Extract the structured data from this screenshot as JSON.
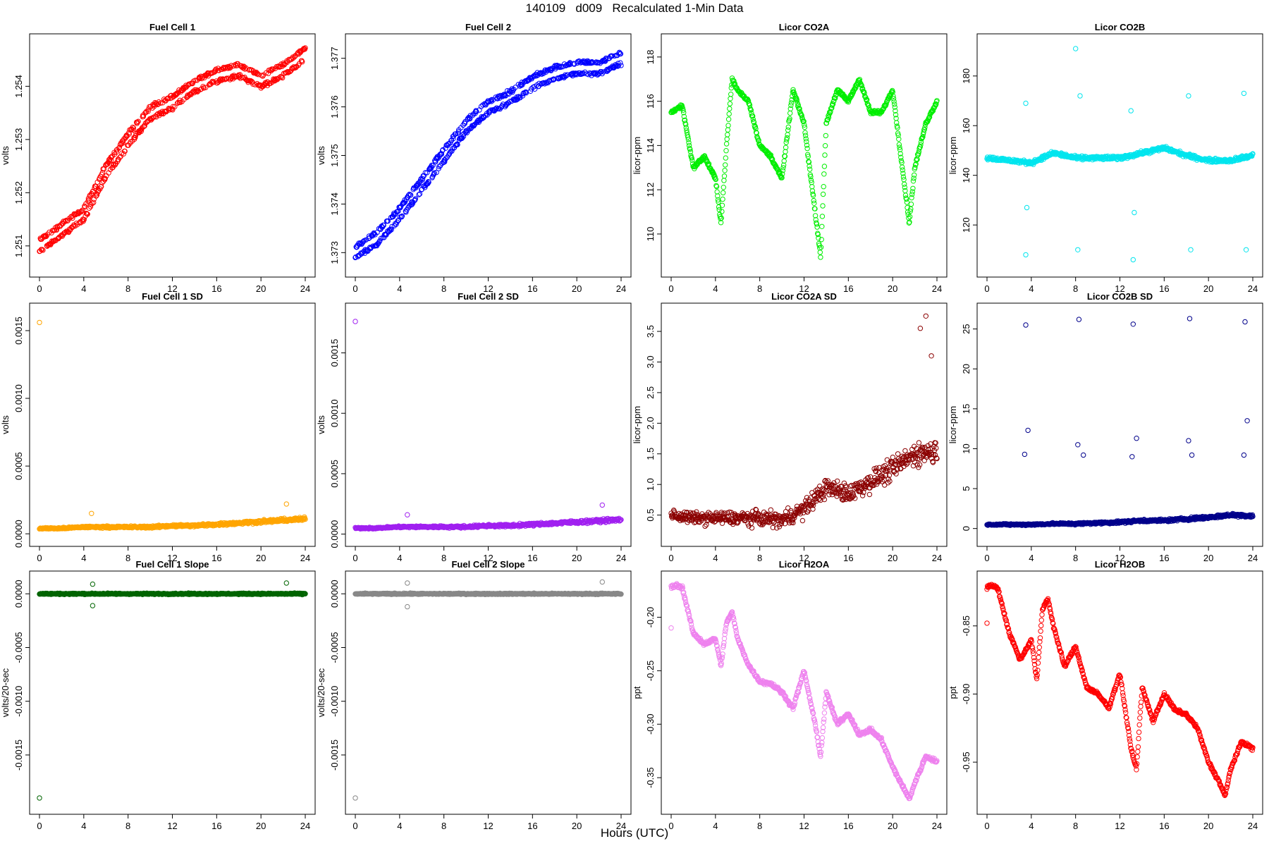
{
  "figure": {
    "title": "140109   d009   Recalculated 1-Min Data",
    "xlabel": "Hours (UTC)"
  },
  "chart_data": [
    {
      "id": "fc1",
      "type": "scatter",
      "title": "Fuel Cell 1",
      "xlabel": "",
      "ylabel": "volts",
      "color": "#ff0000",
      "xlim": [
        0,
        24
      ],
      "ylim": [
        1.2506,
        1.2548
      ],
      "xticks": [
        "0",
        "4",
        "8",
        "12",
        "16",
        "20",
        "24"
      ],
      "yticks": [
        "1.251",
        "1.252",
        "1.253",
        "1.254"
      ],
      "x": [
        0,
        2,
        4,
        6,
        8,
        10,
        12,
        14,
        16,
        18,
        20,
        22,
        24
      ],
      "series": [
        {
          "values": [
            1.251,
            1.2513,
            1.2516,
            1.2524,
            1.253,
            1.2535,
            1.2537,
            1.254,
            1.2542,
            1.2543,
            1.2541,
            1.2543,
            1.2546
          ]
        }
      ]
    },
    {
      "id": "fc2",
      "type": "scatter",
      "title": "Fuel Cell 2",
      "xlabel": "",
      "ylabel": "volts",
      "color": "#0000ff",
      "xlim": [
        0,
        24
      ],
      "ylim": [
        1.3727,
        1.3773
      ],
      "xticks": [
        "0",
        "4",
        "8",
        "12",
        "16",
        "20",
        "24"
      ],
      "yticks": [
        "1.373",
        "1.374",
        "1.375",
        "1.376",
        "1.377"
      ],
      "x": [
        0,
        2,
        4,
        6,
        8,
        10,
        12,
        14,
        16,
        18,
        20,
        22,
        24
      ],
      "series": [
        {
          "values": [
            1.373,
            1.3733,
            1.3738,
            1.3744,
            1.375,
            1.3756,
            1.376,
            1.3762,
            1.3765,
            1.3767,
            1.3768,
            1.3768,
            1.377
          ]
        }
      ]
    },
    {
      "id": "co2a",
      "type": "scatter",
      "title": "Licor CO2A",
      "xlabel": "",
      "ylabel": "licor-ppm",
      "color": "#00ee00",
      "xlim": [
        0,
        24
      ],
      "ylim": [
        108.5,
        118.6
      ],
      "xticks": [
        "0",
        "4",
        "8",
        "12",
        "16",
        "20",
        "24"
      ],
      "yticks": [
        "110",
        "112",
        "114",
        "116",
        "118"
      ],
      "x": [
        0,
        1,
        2,
        3,
        4,
        4.5,
        5,
        5.5,
        6,
        7,
        8,
        9,
        10,
        11,
        12,
        13,
        13.5,
        14,
        15,
        16,
        17,
        18,
        19,
        20,
        21,
        21.5,
        22,
        23,
        24
      ],
      "series": [
        {
          "values": [
            115.5,
            115.8,
            113,
            113.5,
            112.5,
            110.5,
            114,
            117,
            116.5,
            116,
            114,
            113.5,
            112.5,
            116.5,
            115,
            111,
            109,
            115,
            116.5,
            116,
            117,
            115.5,
            115.5,
            116.5,
            112.5,
            110.5,
            113,
            115,
            116
          ]
        }
      ]
    },
    {
      "id": "co2b",
      "type": "scatter",
      "title": "Licor CO2B",
      "xlabel": "",
      "ylabel": "licor-ppm",
      "color": "#00e5ee",
      "xlim": [
        0,
        24
      ],
      "ylim": [
        103,
        193
      ],
      "xticks": [
        "0",
        "4",
        "8",
        "12",
        "16",
        "20",
        "24"
      ],
      "yticks": [
        "120",
        "140",
        "160",
        "180"
      ],
      "x": [
        0,
        2,
        4,
        6,
        8,
        10,
        12,
        14,
        16,
        18,
        20,
        22,
        24
      ],
      "series": [
        {
          "values": [
            147,
            146,
            145,
            149,
            147,
            147,
            147,
            149,
            151,
            148,
            146,
            146,
            148
          ]
        }
      ],
      "outliers_x": [
        3.5,
        3.5,
        3.6,
        8,
        8.2,
        8.4,
        13,
        13.2,
        13.3,
        18.2,
        18.4,
        23.2,
        23.4
      ],
      "outliers_y": [
        169,
        108,
        127,
        191,
        110,
        172,
        166,
        106,
        125,
        172,
        110,
        173,
        110
      ]
    },
    {
      "id": "fc1sd",
      "type": "scatter",
      "title": "Fuel Cell 1 SD",
      "xlabel": "",
      "ylabel": "volts",
      "color": "#ffa500",
      "xlim": [
        0,
        24
      ],
      "ylim": [
        -2e-05,
        0.00163
      ],
      "xticks": [
        "0",
        "4",
        "8",
        "12",
        "16",
        "20",
        "24"
      ],
      "yticks": [
        "0.0000",
        "0.0005",
        "0.0010",
        "0.0015"
      ],
      "x": [
        0,
        2,
        4,
        6,
        8,
        10,
        12,
        14,
        16,
        18,
        20,
        22,
        24
      ],
      "series": [
        {
          "values": [
            4e-05,
            4e-05,
            5e-05,
            5e-05,
            5e-05,
            5e-05,
            6e-05,
            6e-05,
            7e-05,
            8e-05,
            9e-05,
            0.0001,
            0.00011
          ]
        }
      ],
      "outliers_x": [
        0,
        4.7,
        22.3
      ],
      "outliers_y": [
        0.00156,
        0.00015,
        0.00022
      ]
    },
    {
      "id": "fc2sd",
      "type": "scatter",
      "title": "Fuel Cell 2 SD",
      "xlabel": "",
      "ylabel": "volts",
      "color": "#a020f0",
      "xlim": [
        0,
        24
      ],
      "ylim": [
        -2e-05,
        0.00183
      ],
      "xticks": [
        "0",
        "4",
        "8",
        "12",
        "16",
        "20",
        "24"
      ],
      "yticks": [
        "0.0000",
        "0.0005",
        "0.0010",
        "0.0015"
      ],
      "x": [
        0,
        2,
        4,
        6,
        8,
        10,
        12,
        14,
        16,
        18,
        20,
        22,
        24
      ],
      "series": [
        {
          "values": [
            5e-05,
            5e-05,
            6e-05,
            6e-05,
            6e-05,
            6e-05,
            7e-05,
            7e-05,
            8e-05,
            9e-05,
            0.0001,
            0.00011,
            0.00012
          ]
        }
      ],
      "outliers_x": [
        0,
        4.7,
        22.3
      ],
      "outliers_y": [
        0.00176,
        0.00016,
        0.00024
      ]
    },
    {
      "id": "co2asd",
      "type": "scatter",
      "title": "Licor CO2A SD",
      "xlabel": "",
      "ylabel": "licor-ppm",
      "color": "#8b0000",
      "xlim": [
        0,
        24
      ],
      "ylim": [
        0.15,
        3.8
      ],
      "xticks": [
        "0",
        "4",
        "8",
        "12",
        "16",
        "20",
        "24"
      ],
      "yticks": [
        "0.5",
        "1.0",
        "1.5",
        "2.0",
        "2.5",
        "3.0",
        "3.5"
      ],
      "x": [
        0,
        2,
        4,
        6,
        8,
        10,
        12,
        14,
        16,
        18,
        20,
        22,
        24
      ],
      "series": [
        {
          "values": [
            0.5,
            0.45,
            0.45,
            0.45,
            0.45,
            0.42,
            0.6,
            0.95,
            0.85,
            1.05,
            1.25,
            1.5,
            1.55
          ]
        }
      ],
      "outliers_x": [
        22.5,
        23,
        23.5
      ],
      "outliers_y": [
        3.55,
        3.75,
        3.1
      ]
    },
    {
      "id": "co2bsd",
      "type": "scatter",
      "title": "Licor CO2B SD",
      "xlabel": "",
      "ylabel": "licor-ppm",
      "color": "#00008b",
      "xlim": [
        0,
        24
      ],
      "ylim": [
        -1,
        27
      ],
      "xticks": [
        "0",
        "4",
        "8",
        "12",
        "16",
        "20",
        "24"
      ],
      "yticks": [
        "0",
        "5",
        "10",
        "15",
        "20",
        "25"
      ],
      "x": [
        0,
        2,
        4,
        6,
        8,
        10,
        12,
        14,
        16,
        18,
        20,
        22,
        24
      ],
      "series": [
        {
          "values": [
            0.5,
            0.5,
            0.5,
            0.6,
            0.6,
            0.7,
            0.8,
            1.0,
            1.0,
            1.2,
            1.4,
            1.7,
            1.6
          ]
        }
      ],
      "outliers_x": [
        3.5,
        3.7,
        8.3,
        8.7,
        13.2,
        13.5,
        18.3,
        18.5,
        23.3,
        23.5,
        3.4,
        8.2,
        13.1,
        18.2,
        23.2
      ],
      "outliers_y": [
        25.5,
        12.3,
        26.2,
        9.2,
        25.6,
        11.3,
        26.3,
        9.2,
        25.9,
        13.5,
        9.3,
        10.5,
        9.0,
        11.0,
        9.2
      ]
    },
    {
      "id": "fc1sl",
      "type": "scatter",
      "title": "Fuel Cell 1 Slope",
      "xlabel": "",
      "ylabel": "volts/20-sec",
      "color": "#006400",
      "xlim": [
        0,
        24
      ],
      "ylim": [
        -0.00196,
        0.00012
      ],
      "xticks": [
        "0",
        "4",
        "8",
        "12",
        "16",
        "20",
        "24"
      ],
      "yticks": [
        "-0.0015",
        "-0.0010",
        "-0.0005",
        "0.0000"
      ],
      "x": [
        0,
        2,
        4,
        6,
        8,
        10,
        12,
        14,
        16,
        18,
        20,
        22,
        24
      ],
      "series": [
        {
          "values": [
            0,
            0,
            0,
            0,
            0,
            0,
            0,
            0,
            0,
            0,
            0,
            0,
            0
          ]
        }
      ],
      "outliers_x": [
        0,
        4.8,
        4.8,
        22.3
      ],
      "outliers_y": [
        -0.0019,
        9e-05,
        -0.00011,
        0.0001
      ]
    },
    {
      "id": "fc2sl",
      "type": "scatter",
      "title": "Fuel Cell 2 Slope",
      "xlabel": "",
      "ylabel": "volts/20-sec",
      "color": "#888888",
      "xlim": [
        0,
        24
      ],
      "ylim": [
        -0.00196,
        0.00012
      ],
      "xticks": [
        "0",
        "4",
        "8",
        "12",
        "16",
        "20",
        "24"
      ],
      "yticks": [
        "-0.0015",
        "-0.0010",
        "-0.0005",
        "0.0000"
      ],
      "x": [
        0,
        2,
        4,
        6,
        8,
        10,
        12,
        14,
        16,
        18,
        20,
        22,
        24
      ],
      "series": [
        {
          "values": [
            0,
            0,
            0,
            0,
            0,
            0,
            0,
            0,
            0,
            0,
            0,
            0,
            0
          ]
        }
      ],
      "outliers_x": [
        0,
        4.7,
        4.7,
        22.3
      ],
      "outliers_y": [
        -0.0019,
        0.0001,
        -0.00012,
        0.00011
      ]
    },
    {
      "id": "h2oa",
      "type": "scatter",
      "title": "Licor H2OA",
      "xlabel": "",
      "ylabel": "ppt",
      "color": "#ee82ee",
      "xlim": [
        0,
        24
      ],
      "ylim": [
        -0.375,
        -0.166
      ],
      "xticks": [
        "0",
        "4",
        "8",
        "12",
        "16",
        "20",
        "24"
      ],
      "yticks": [
        "-0.35",
        "-0.30",
        "-0.25",
        "-0.20"
      ],
      "x": [
        0,
        0.5,
        1,
        2,
        3,
        4,
        4.5,
        5,
        5.5,
        6,
        7,
        8,
        9,
        10,
        11,
        12,
        13,
        13.5,
        14,
        15,
        16,
        17,
        18,
        19,
        20,
        21,
        21.5,
        22,
        23,
        24
      ],
      "series": [
        {
          "values": [
            -0.172,
            -0.17,
            -0.172,
            -0.215,
            -0.225,
            -0.22,
            -0.245,
            -0.205,
            -0.195,
            -0.22,
            -0.245,
            -0.26,
            -0.262,
            -0.27,
            -0.285,
            -0.25,
            -0.3,
            -0.33,
            -0.27,
            -0.3,
            -0.29,
            -0.31,
            -0.305,
            -0.315,
            -0.34,
            -0.36,
            -0.37,
            -0.355,
            -0.33,
            -0.335
          ]
        }
      ],
      "outliers_x": [
        0
      ],
      "outliers_y": [
        -0.21
      ]
    },
    {
      "id": "h2ob",
      "type": "scatter",
      "title": "Licor H2OB",
      "xlabel": "",
      "ylabel": "ppt",
      "color": "#ff0000",
      "xlim": [
        0,
        24
      ],
      "ylim": [
        -0.981,
        -0.817
      ],
      "xticks": [
        "0",
        "4",
        "8",
        "12",
        "16",
        "20",
        "24"
      ],
      "yticks": [
        "-0.95",
        "-0.90",
        "-0.85"
      ],
      "x": [
        0,
        0.5,
        1,
        2,
        3,
        4,
        4.5,
        5,
        5.5,
        6,
        7,
        8,
        9,
        10,
        11,
        12,
        13,
        13.5,
        14,
        15,
        16,
        17,
        18,
        19,
        20,
        21,
        21.5,
        22,
        23,
        24
      ],
      "series": [
        {
          "values": [
            -0.822,
            -0.82,
            -0.823,
            -0.855,
            -0.875,
            -0.86,
            -0.89,
            -0.838,
            -0.83,
            -0.85,
            -0.88,
            -0.865,
            -0.895,
            -0.9,
            -0.91,
            -0.885,
            -0.94,
            -0.955,
            -0.895,
            -0.92,
            -0.9,
            -0.912,
            -0.915,
            -0.925,
            -0.95,
            -0.965,
            -0.975,
            -0.955,
            -0.935,
            -0.94
          ]
        }
      ],
      "outliers_x": [
        0
      ],
      "outliers_y": [
        -0.848
      ]
    }
  ]
}
